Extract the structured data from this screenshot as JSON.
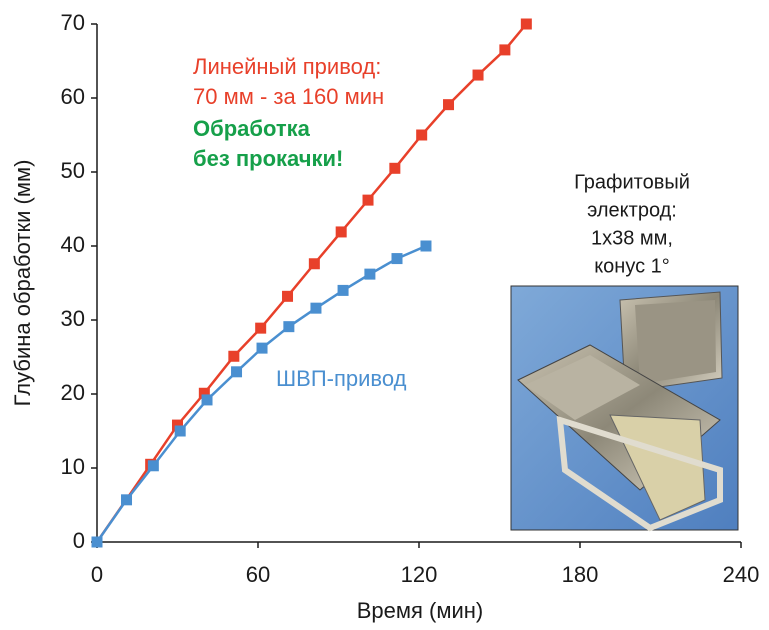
{
  "chart_data": {
    "type": "line",
    "xlabel": "Время (мин)",
    "ylabel": "Глубина обработки (мм)",
    "xlim": [
      0,
      240
    ],
    "xticks": [
      0,
      60,
      120,
      180,
      240
    ],
    "ylim": [
      0,
      70
    ],
    "yticks": [
      0,
      10,
      20,
      30,
      40,
      50,
      60,
      70
    ],
    "series": [
      {
        "color": "#e8402a",
        "x": [
          0,
          20,
          30,
          40,
          51,
          61,
          71,
          81,
          91,
          101,
          111,
          121,
          131,
          142,
          152,
          160
        ],
        "values": [
          0,
          10.5,
          15.8,
          20.1,
          25.1,
          28.9,
          33.2,
          37.6,
          41.9,
          46.2,
          50.5,
          55,
          59.1,
          63.1,
          66.5,
          70
        ]
      },
      {
        "color": "#4a8fd0",
        "x": [
          0,
          11,
          21,
          31,
          41,
          52,
          61.5,
          71.5,
          81.6,
          91.7,
          101.7,
          111.8,
          122.6
        ],
        "values": [
          0,
          5.7,
          10.3,
          15,
          19.2,
          23,
          26.2,
          29.1,
          31.6,
          34,
          36.2,
          38.3,
          40
        ]
      }
    ],
    "annotations": [
      "Линейный привод:",
      "70 мм - за 160 мин",
      "Обработка",
      "без прокачки!",
      "Графитовый",
      "электрод:",
      "1х38 мм,",
      "конус 1°",
      "ШВП-привод"
    ]
  }
}
